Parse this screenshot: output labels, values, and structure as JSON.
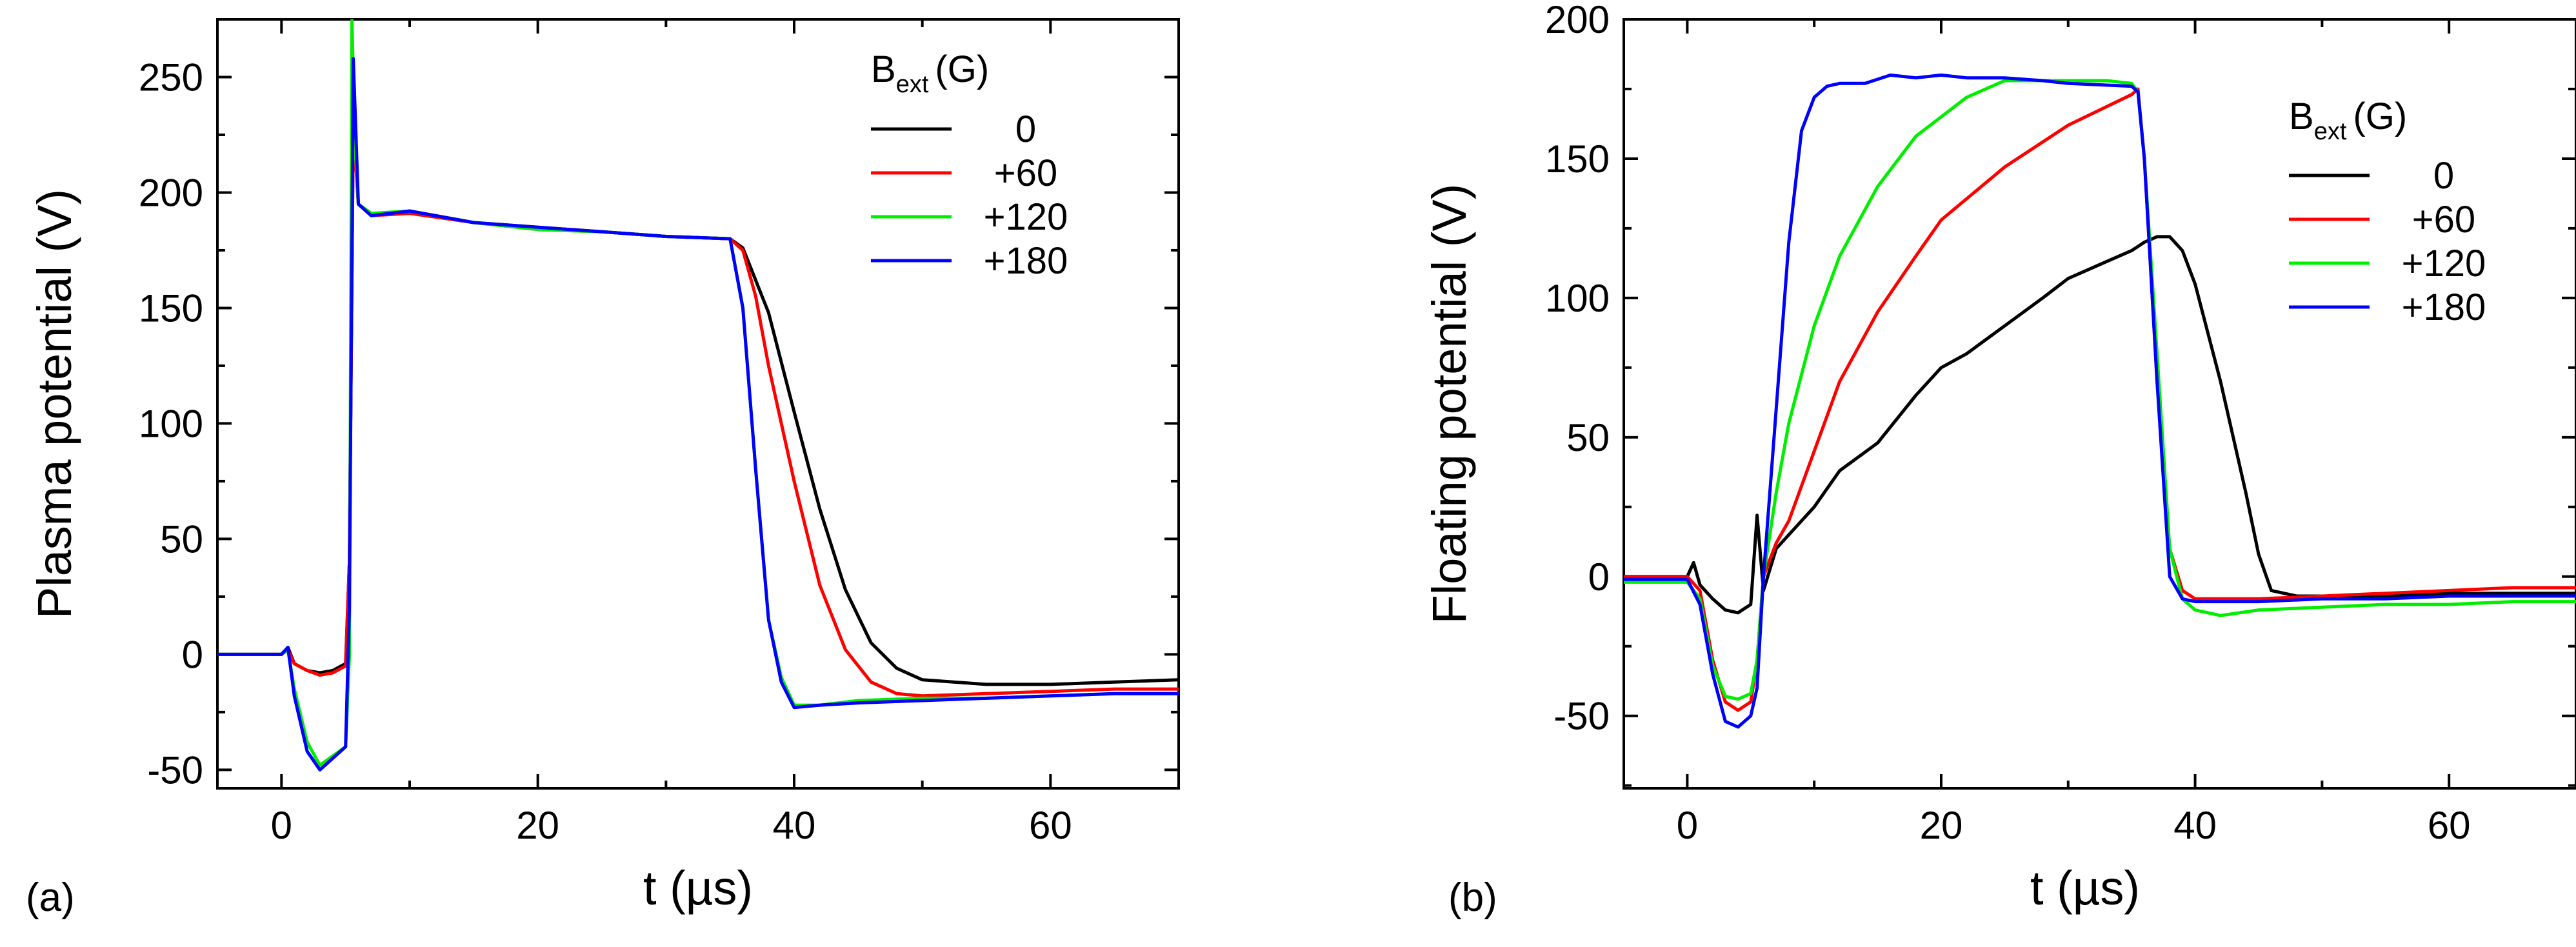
{
  "chart_data": [
    {
      "panel": "(a)",
      "type": "line",
      "xlabel": "t (µs)",
      "ylabel": "Plasma potential (V)",
      "xlim": [
        -5,
        70
      ],
      "ylim": [
        -58,
        275
      ],
      "xticks": [
        0,
        20,
        40,
        60
      ],
      "xtick_labels": [
        "0",
        "20",
        "40",
        "60"
      ],
      "yticks": [
        -50,
        0,
        50,
        100,
        150,
        200,
        250
      ],
      "ytick_labels": [
        "-50",
        "0",
        "50",
        "100",
        "150",
        "200",
        "250"
      ],
      "legend": {
        "title_main": "B",
        "title_sub": "ext",
        "title_rest": "(G)",
        "placement": "top-right",
        "entries": [
          "0",
          "+60",
          "+120",
          "+180"
        ]
      },
      "series": [
        {
          "name": "0",
          "color": "#000000",
          "x": [
            -5,
            0,
            0.5,
            1,
            2,
            3,
            4,
            5,
            5.3,
            5.6,
            6,
            7,
            10,
            15,
            20,
            25,
            30,
            35,
            36,
            38,
            40,
            42,
            44,
            46,
            48,
            50,
            55,
            60,
            65,
            70
          ],
          "y": [
            0,
            0,
            3,
            -4,
            -7,
            -8,
            -7,
            -4,
            40,
            230,
            195,
            190,
            192,
            187,
            185,
            183,
            181,
            180,
            176,
            148,
            105,
            63,
            28,
            5,
            -6,
            -11,
            -13,
            -13,
            -12,
            -11
          ]
        },
        {
          "name": "+60",
          "color": "#ff0000",
          "x": [
            -5,
            0,
            0.5,
            1,
            2,
            3,
            4,
            5,
            5.3,
            5.6,
            6,
            7,
            10,
            15,
            20,
            25,
            30,
            35,
            36,
            37,
            38,
            40,
            42,
            44,
            46,
            48,
            50,
            55,
            60,
            65,
            70
          ],
          "y": [
            0,
            0,
            2,
            -4,
            -7,
            -9,
            -8,
            -5,
            40,
            230,
            195,
            190,
            191,
            187,
            184,
            183,
            181,
            180,
            175,
            155,
            125,
            75,
            30,
            2,
            -12,
            -17,
            -18,
            -17,
            -16,
            -15,
            -15
          ]
        },
        {
          "name": "+120",
          "color": "#00ee00",
          "x": [
            -5,
            0,
            0.5,
            1,
            2,
            3,
            4,
            5,
            5.3,
            5.5,
            5.7,
            6,
            7,
            10,
            15,
            20,
            25,
            30,
            35,
            36,
            37,
            38,
            39,
            40,
            42,
            45,
            50,
            55,
            60,
            65,
            70
          ],
          "y": [
            0,
            0,
            2,
            -15,
            -38,
            -48,
            -44,
            -40,
            0,
            275,
            225,
            195,
            191,
            192,
            187,
            184,
            183,
            181,
            180,
            150,
            80,
            15,
            -10,
            -22,
            -22,
            -20,
            -19,
            -19,
            -18,
            -17,
            -17
          ]
        },
        {
          "name": "+180",
          "color": "#0000ff",
          "x": [
            -5,
            0,
            0.5,
            1,
            2,
            3,
            4,
            5,
            5.3,
            5.6,
            6,
            7,
            10,
            15,
            20,
            25,
            30,
            35,
            36,
            37,
            38,
            39,
            40,
            42,
            45,
            50,
            55,
            60,
            65,
            70
          ],
          "y": [
            0,
            0,
            3,
            -18,
            -42,
            -50,
            -45,
            -40,
            20,
            258,
            195,
            190,
            192,
            187,
            185,
            183,
            181,
            180,
            150,
            80,
            15,
            -12,
            -23,
            -22,
            -21,
            -20,
            -19,
            -18,
            -17,
            -17
          ]
        }
      ]
    },
    {
      "panel": "(b)",
      "type": "line",
      "xlabel": "t (µs)",
      "ylabel": "Floating potential (V)",
      "xlim": [
        -5,
        70
      ],
      "ylim": [
        -76,
        200
      ],
      "xticks": [
        0,
        20,
        40,
        60
      ],
      "xtick_labels": [
        "0",
        "20",
        "40",
        "60"
      ],
      "yticks": [
        -50,
        0,
        50,
        100,
        150,
        200
      ],
      "ytick_labels": [
        "-50",
        "0",
        "50",
        "100",
        "150",
        "200"
      ],
      "legend": {
        "title_main": "B",
        "title_sub": "ext",
        "title_rest": "(G)",
        "placement": "top-right",
        "entries": [
          "0",
          "+60",
          "+120",
          "+180"
        ]
      },
      "series": [
        {
          "name": "0",
          "color": "#000000",
          "x": [
            -5,
            0,
            0.5,
            1,
            2,
            3,
            4,
            5,
            5.5,
            6,
            7,
            8,
            10,
            12,
            15,
            18,
            20,
            22,
            25,
            28,
            30,
            33,
            35,
            36,
            37,
            38,
            39,
            40,
            42,
            44,
            45,
            46,
            48,
            50,
            55,
            60,
            65,
            70
          ],
          "y": [
            0,
            0,
            5,
            -3,
            -8,
            -12,
            -13,
            -10,
            22,
            -5,
            10,
            15,
            25,
            38,
            48,
            65,
            75,
            80,
            90,
            100,
            107,
            113,
            117,
            120,
            122,
            122,
            117,
            105,
            70,
            30,
            8,
            -5,
            -7,
            -7,
            -7,
            -6,
            -6,
            -6
          ]
        },
        {
          "name": "+60",
          "color": "#ff0000",
          "x": [
            -5,
            0,
            1,
            2,
            3,
            4,
            5,
            5.5,
            6,
            7,
            8,
            10,
            12,
            15,
            18,
            20,
            25,
            30,
            35,
            35.5,
            36,
            37,
            38,
            39,
            40,
            42,
            45,
            50,
            55,
            60,
            65,
            70
          ],
          "y": [
            0,
            0,
            -5,
            -30,
            -45,
            -48,
            -45,
            -30,
            0,
            12,
            20,
            45,
            70,
            95,
            115,
            128,
            147,
            162,
            173,
            175,
            150,
            70,
            10,
            -5,
            -8,
            -8,
            -8,
            -7,
            -6,
            -5,
            -4,
            -4
          ]
        },
        {
          "name": "+120",
          "color": "#00ee00",
          "x": [
            -5,
            0,
            1,
            2,
            3,
            4,
            5,
            5.5,
            6,
            7,
            8,
            10,
            12,
            15,
            18,
            20,
            22,
            25,
            28,
            30,
            33,
            35,
            35.5,
            36,
            37,
            38,
            39,
            40,
            42,
            45,
            50,
            55,
            60,
            65,
            70
          ],
          "y": [
            -2,
            -2,
            -8,
            -32,
            -43,
            -44,
            -42,
            -30,
            0,
            30,
            55,
            90,
            115,
            140,
            158,
            165,
            172,
            178,
            178,
            178,
            178,
            177,
            174,
            150,
            80,
            10,
            -8,
            -12,
            -14,
            -12,
            -11,
            -10,
            -10,
            -9,
            -9
          ]
        },
        {
          "name": "+180",
          "color": "#0000ff",
          "x": [
            -5,
            0,
            1,
            2,
            3,
            4,
            5,
            5.5,
            6,
            7,
            8,
            9,
            10,
            11,
            12,
            14,
            16,
            18,
            20,
            22,
            25,
            28,
            30,
            35,
            35.5,
            36,
            37,
            38,
            39,
            40,
            42,
            45,
            50,
            55,
            60,
            65,
            70
          ],
          "y": [
            -1,
            -1,
            -10,
            -35,
            -52,
            -54,
            -50,
            -40,
            0,
            60,
            120,
            160,
            172,
            176,
            177,
            177,
            180,
            179,
            180,
            179,
            179,
            178,
            177,
            176,
            174,
            150,
            70,
            0,
            -8,
            -9,
            -9,
            -9,
            -8,
            -8,
            -7,
            -7,
            -7
          ]
        }
      ]
    }
  ]
}
